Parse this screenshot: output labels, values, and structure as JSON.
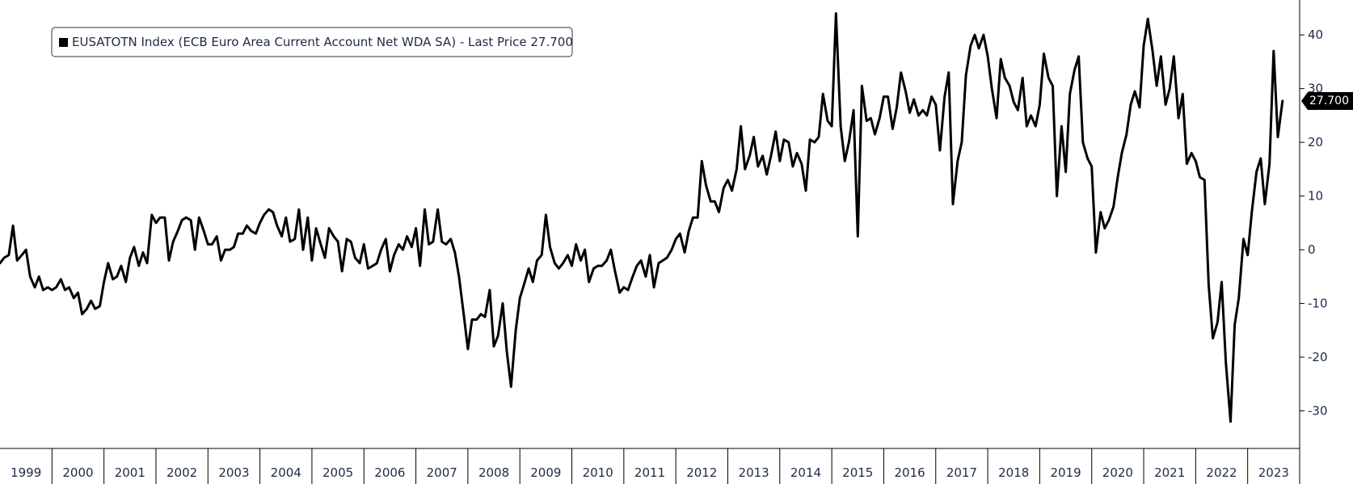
{
  "chart_data": {
    "type": "line",
    "legend": {
      "text": "EUSATOTN Index (ECB Euro Area Current Account Net WDA SA) - Last Price 27.700",
      "placement": "top-left",
      "marker_color": "#000000"
    },
    "last_value_label": "27.700",
    "y_ticks": [
      -30,
      -20,
      -10,
      0,
      10,
      20,
      30,
      40
    ],
    "ylim": [
      -37,
      46.5
    ],
    "x_year_labels": [
      "1999",
      "2000",
      "2001",
      "2002",
      "2003",
      "2004",
      "2005",
      "2006",
      "2007",
      "2008",
      "2009",
      "2010",
      "2011",
      "2012",
      "2013",
      "2014",
      "2015",
      "2016",
      "2017",
      "2018",
      "2019",
      "2020",
      "2021",
      "2022",
      "2023"
    ],
    "x_range": [
      1999.0,
      2024.0
    ],
    "grid": false,
    "series": [
      {
        "color": "#000000",
        "points": [
          [
            1999.0,
            -2.5
          ],
          [
            1999.08,
            -1.5
          ],
          [
            1999.17,
            -1.0
          ],
          [
            1999.25,
            4.5
          ],
          [
            1999.33,
            -2.0
          ],
          [
            1999.42,
            -1.0
          ],
          [
            1999.5,
            0.0
          ],
          [
            1999.58,
            -5.0
          ],
          [
            1999.67,
            -7.0
          ],
          [
            1999.75,
            -5.0
          ],
          [
            1999.83,
            -7.5
          ],
          [
            1999.92,
            -7.0
          ],
          [
            2000.0,
            -7.5
          ],
          [
            2000.08,
            -7.0
          ],
          [
            2000.17,
            -5.5
          ],
          [
            2000.25,
            -7.5
          ],
          [
            2000.33,
            -7.0
          ],
          [
            2000.42,
            -9.0
          ],
          [
            2000.5,
            -8.0
          ],
          [
            2000.58,
            -12.0
          ],
          [
            2000.67,
            -11.0
          ],
          [
            2000.75,
            -9.5
          ],
          [
            2000.83,
            -11.0
          ],
          [
            2000.92,
            -10.5
          ],
          [
            2001.0,
            -6.0
          ],
          [
            2001.08,
            -2.5
          ],
          [
            2001.17,
            -5.5
          ],
          [
            2001.25,
            -5.0
          ],
          [
            2001.33,
            -3.0
          ],
          [
            2001.42,
            -6.0
          ],
          [
            2001.5,
            -1.5
          ],
          [
            2001.58,
            0.5
          ],
          [
            2001.67,
            -3.0
          ],
          [
            2001.75,
            -0.5
          ],
          [
            2001.83,
            -2.5
          ],
          [
            2001.92,
            6.5
          ],
          [
            2002.0,
            5.0
          ],
          [
            2002.08,
            6.0
          ],
          [
            2002.17,
            6.0
          ],
          [
            2002.25,
            -2.0
          ],
          [
            2002.33,
            1.5
          ],
          [
            2002.42,
            3.5
          ],
          [
            2002.5,
            5.5
          ],
          [
            2002.58,
            6.0
          ],
          [
            2002.67,
            5.5
          ],
          [
            2002.75,
            0.0
          ],
          [
            2002.83,
            6.0
          ],
          [
            2002.92,
            3.5
          ],
          [
            2003.0,
            1.0
          ],
          [
            2003.08,
            1.0
          ],
          [
            2003.17,
            2.5
          ],
          [
            2003.25,
            -2.0
          ],
          [
            2003.33,
            0.0
          ],
          [
            2003.42,
            0.0
          ],
          [
            2003.5,
            0.5
          ],
          [
            2003.58,
            3.0
          ],
          [
            2003.67,
            3.0
          ],
          [
            2003.75,
            4.5
          ],
          [
            2003.83,
            3.5
          ],
          [
            2003.92,
            3.0
          ],
          [
            2004.0,
            5.0
          ],
          [
            2004.08,
            6.5
          ],
          [
            2004.17,
            7.5
          ],
          [
            2004.25,
            7.0
          ],
          [
            2004.33,
            4.5
          ],
          [
            2004.42,
            2.5
          ],
          [
            2004.5,
            6.0
          ],
          [
            2004.58,
            1.5
          ],
          [
            2004.67,
            2.0
          ],
          [
            2004.75,
            7.5
          ],
          [
            2004.83,
            0.0
          ],
          [
            2004.92,
            6.0
          ],
          [
            2005.0,
            -2.0
          ],
          [
            2005.08,
            4.0
          ],
          [
            2005.17,
            1.0
          ],
          [
            2005.25,
            -1.5
          ],
          [
            2005.33,
            4.0
          ],
          [
            2005.42,
            2.5
          ],
          [
            2005.5,
            1.5
          ],
          [
            2005.58,
            -4.0
          ],
          [
            2005.67,
            2.0
          ],
          [
            2005.75,
            1.5
          ],
          [
            2005.83,
            -1.5
          ],
          [
            2005.92,
            -2.5
          ],
          [
            2006.0,
            1.0
          ],
          [
            2006.08,
            -3.5
          ],
          [
            2006.17,
            -3.0
          ],
          [
            2006.25,
            -2.5
          ],
          [
            2006.33,
            0.0
          ],
          [
            2006.42,
            2.0
          ],
          [
            2006.5,
            -4.0
          ],
          [
            2006.58,
            -1.0
          ],
          [
            2006.67,
            1.0
          ],
          [
            2006.75,
            0.0
          ],
          [
            2006.83,
            2.5
          ],
          [
            2006.92,
            0.5
          ],
          [
            2007.0,
            4.0
          ],
          [
            2007.08,
            -3.0
          ],
          [
            2007.17,
            7.5
          ],
          [
            2007.25,
            1.0
          ],
          [
            2007.33,
            1.5
          ],
          [
            2007.42,
            7.5
          ],
          [
            2007.5,
            1.5
          ],
          [
            2007.58,
            1.0
          ],
          [
            2007.67,
            2.0
          ],
          [
            2007.75,
            -0.5
          ],
          [
            2007.83,
            -5.0
          ],
          [
            2007.92,
            -12.0
          ],
          [
            2008.0,
            -18.5
          ],
          [
            2008.08,
            -13.0
          ],
          [
            2008.17,
            -13.0
          ],
          [
            2008.25,
            -12.0
          ],
          [
            2008.33,
            -12.5
          ],
          [
            2008.42,
            -7.5
          ],
          [
            2008.5,
            -18.0
          ],
          [
            2008.58,
            -16.0
          ],
          [
            2008.67,
            -10.0
          ],
          [
            2008.75,
            -19.0
          ],
          [
            2008.83,
            -25.5
          ],
          [
            2008.92,
            -15.0
          ],
          [
            2009.0,
            -9.0
          ],
          [
            2009.08,
            -6.5
          ],
          [
            2009.17,
            -3.5
          ],
          [
            2009.25,
            -6.0
          ],
          [
            2009.33,
            -2.0
          ],
          [
            2009.42,
            -1.0
          ],
          [
            2009.5,
            6.5
          ],
          [
            2009.58,
            0.5
          ],
          [
            2009.67,
            -2.5
          ],
          [
            2009.75,
            -3.5
          ],
          [
            2009.83,
            -2.5
          ],
          [
            2009.92,
            -1.0
          ],
          [
            2010.0,
            -3.0
          ],
          [
            2010.08,
            1.0
          ],
          [
            2010.17,
            -2.0
          ],
          [
            2010.25,
            0.0
          ],
          [
            2010.33,
            -6.0
          ],
          [
            2010.42,
            -3.5
          ],
          [
            2010.5,
            -3.0
          ],
          [
            2010.58,
            -3.0
          ],
          [
            2010.67,
            -2.0
          ],
          [
            2010.75,
            0.0
          ],
          [
            2010.83,
            -4.0
          ],
          [
            2010.92,
            -8.0
          ],
          [
            2011.0,
            -7.0
          ],
          [
            2011.08,
            -7.5
          ],
          [
            2011.17,
            -5.0
          ],
          [
            2011.25,
            -3.0
          ],
          [
            2011.33,
            -2.0
          ],
          [
            2011.42,
            -5.0
          ],
          [
            2011.5,
            -1.0
          ],
          [
            2011.58,
            -7.0
          ],
          [
            2011.67,
            -2.5
          ],
          [
            2011.75,
            -2.0
          ],
          [
            2011.83,
            -1.5
          ],
          [
            2011.92,
            0.0
          ],
          [
            2012.0,
            2.0
          ],
          [
            2012.08,
            3.0
          ],
          [
            2012.17,
            -0.5
          ],
          [
            2012.25,
            3.5
          ],
          [
            2012.33,
            6.0
          ],
          [
            2012.42,
            6.0
          ],
          [
            2012.5,
            16.5
          ],
          [
            2012.58,
            12.0
          ],
          [
            2012.67,
            9.0
          ],
          [
            2012.75,
            9.0
          ],
          [
            2012.83,
            7.0
          ],
          [
            2012.92,
            11.5
          ],
          [
            2013.0,
            13.0
          ],
          [
            2013.08,
            11.0
          ],
          [
            2013.17,
            15.0
          ],
          [
            2013.25,
            23.0
          ],
          [
            2013.33,
            15.0
          ],
          [
            2013.42,
            17.5
          ],
          [
            2013.5,
            21.0
          ],
          [
            2013.58,
            15.5
          ],
          [
            2013.67,
            17.5
          ],
          [
            2013.75,
            14.0
          ],
          [
            2013.83,
            17.5
          ],
          [
            2013.92,
            22.0
          ],
          [
            2014.0,
            16.5
          ],
          [
            2014.08,
            20.5
          ],
          [
            2014.17,
            20.0
          ],
          [
            2014.25,
            15.5
          ],
          [
            2014.33,
            18.0
          ],
          [
            2014.42,
            16.0
          ],
          [
            2014.5,
            11.0
          ],
          [
            2014.58,
            20.5
          ],
          [
            2014.67,
            20.0
          ],
          [
            2014.75,
            21.0
          ],
          [
            2014.83,
            29.0
          ],
          [
            2014.92,
            24.0
          ],
          [
            2015.0,
            23.0
          ],
          [
            2015.08,
            44.0
          ],
          [
            2015.17,
            23.0
          ],
          [
            2015.25,
            16.5
          ],
          [
            2015.33,
            20.0
          ],
          [
            2015.42,
            26.0
          ],
          [
            2015.5,
            2.5
          ],
          [
            2015.58,
            30.5
          ],
          [
            2015.67,
            24.0
          ],
          [
            2015.75,
            24.5
          ],
          [
            2015.83,
            21.5
          ],
          [
            2015.92,
            24.5
          ],
          [
            2016.0,
            28.5
          ],
          [
            2016.08,
            28.5
          ],
          [
            2016.17,
            22.5
          ],
          [
            2016.25,
            26.5
          ],
          [
            2016.33,
            33.0
          ],
          [
            2016.42,
            29.5
          ],
          [
            2016.5,
            25.5
          ],
          [
            2016.58,
            28.0
          ],
          [
            2016.67,
            25.0
          ],
          [
            2016.75,
            26.0
          ],
          [
            2016.83,
            25.0
          ],
          [
            2016.92,
            28.5
          ],
          [
            2017.0,
            27.0
          ],
          [
            2017.08,
            18.5
          ],
          [
            2017.17,
            28.5
          ],
          [
            2017.25,
            33.0
          ],
          [
            2017.33,
            8.5
          ],
          [
            2017.42,
            16.5
          ],
          [
            2017.5,
            20.0
          ],
          [
            2017.58,
            32.5
          ],
          [
            2017.67,
            38.0
          ],
          [
            2017.75,
            40.0
          ],
          [
            2017.83,
            37.5
          ],
          [
            2017.92,
            40.0
          ],
          [
            2018.0,
            36.0
          ],
          [
            2018.08,
            30.0
          ],
          [
            2018.17,
            24.5
          ],
          [
            2018.25,
            35.5
          ],
          [
            2018.33,
            32.0
          ],
          [
            2018.42,
            30.5
          ],
          [
            2018.5,
            27.5
          ],
          [
            2018.58,
            26.0
          ],
          [
            2018.67,
            32.0
          ],
          [
            2018.75,
            23.0
          ],
          [
            2018.83,
            25.0
          ],
          [
            2018.92,
            23.0
          ],
          [
            2019.0,
            27.0
          ],
          [
            2019.08,
            36.5
          ],
          [
            2019.17,
            32.0
          ],
          [
            2019.25,
            30.5
          ],
          [
            2019.33,
            10.0
          ],
          [
            2019.42,
            23.0
          ],
          [
            2019.5,
            14.5
          ],
          [
            2019.58,
            29.0
          ],
          [
            2019.67,
            33.5
          ],
          [
            2019.75,
            36.0
          ],
          [
            2019.83,
            20.0
          ],
          [
            2019.92,
            17.0
          ],
          [
            2020.0,
            15.5
          ],
          [
            2020.08,
            -0.5
          ],
          [
            2020.17,
            7.0
          ],
          [
            2020.25,
            4.0
          ],
          [
            2020.33,
            5.5
          ],
          [
            2020.42,
            8.0
          ],
          [
            2020.5,
            13.5
          ],
          [
            2020.58,
            18.0
          ],
          [
            2020.67,
            21.5
          ],
          [
            2020.75,
            27.0
          ],
          [
            2020.83,
            29.5
          ],
          [
            2020.92,
            26.5
          ],
          [
            2021.0,
            38.0
          ],
          [
            2021.08,
            43.0
          ],
          [
            2021.17,
            37.0
          ],
          [
            2021.25,
            30.5
          ],
          [
            2021.33,
            36.0
          ],
          [
            2021.42,
            27.0
          ],
          [
            2021.5,
            30.0
          ],
          [
            2021.58,
            36.0
          ],
          [
            2021.67,
            24.5
          ],
          [
            2021.75,
            29.0
          ],
          [
            2021.83,
            16.0
          ],
          [
            2021.92,
            18.0
          ],
          [
            2022.0,
            16.5
          ],
          [
            2022.08,
            13.5
          ],
          [
            2022.17,
            13.0
          ],
          [
            2022.25,
            -6.5
          ],
          [
            2022.33,
            -16.5
          ],
          [
            2022.42,
            -13.5
          ],
          [
            2022.5,
            -6.0
          ],
          [
            2022.58,
            -21.0
          ],
          [
            2022.67,
            -32.0
          ],
          [
            2022.75,
            -14.0
          ],
          [
            2022.83,
            -9.0
          ],
          [
            2022.92,
            2.0
          ],
          [
            2023.0,
            -1.0
          ],
          [
            2023.08,
            7.0
          ],
          [
            2023.17,
            14.5
          ],
          [
            2023.25,
            17.0
          ],
          [
            2023.33,
            8.5
          ],
          [
            2023.42,
            16.0
          ],
          [
            2023.5,
            37.0
          ],
          [
            2023.58,
            21.0
          ],
          [
            2023.67,
            27.7
          ]
        ]
      }
    ]
  }
}
